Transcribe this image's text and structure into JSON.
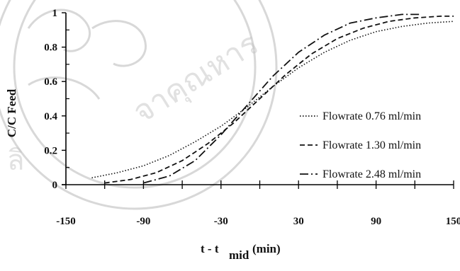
{
  "chart_data": {
    "type": "line",
    "xlabel_main": "t - t",
    "xlabel_sub": "mid",
    "xlabel_unit": "(min)",
    "ylabel": "C/C Feed",
    "xlim": [
      -150,
      150
    ],
    "ylim": [
      0,
      1
    ],
    "x_ticks": [
      "-150",
      "-90",
      "-30",
      "30",
      "90",
      "150"
    ],
    "y_ticks": [
      "0",
      "0.2",
      "0.4",
      "0.6",
      "0.8",
      "1"
    ],
    "grid": false,
    "legend_position": "right",
    "series": [
      {
        "name": "Flowrate 0.76 ml/min",
        "style": "dotted",
        "x": [
          -130,
          -110,
          -90,
          -70,
          -50,
          -30,
          -10,
          10,
          30,
          50,
          70,
          90,
          110,
          130,
          150
        ],
        "y": [
          0.04,
          0.07,
          0.11,
          0.17,
          0.25,
          0.34,
          0.45,
          0.57,
          0.68,
          0.77,
          0.84,
          0.89,
          0.92,
          0.94,
          0.95
        ]
      },
      {
        "name": "Flowrate 1.30 ml/min",
        "style": "dashed",
        "x": [
          -120,
          -100,
          -80,
          -60,
          -40,
          -20,
          0,
          20,
          40,
          60,
          80,
          100,
          120,
          140,
          150
        ],
        "y": [
          0.01,
          0.03,
          0.07,
          0.14,
          0.24,
          0.36,
          0.5,
          0.64,
          0.76,
          0.85,
          0.91,
          0.95,
          0.97,
          0.98,
          0.98
        ]
      },
      {
        "name": "Flowrate 2.48 ml/min",
        "style": "dashdot",
        "x": [
          -90,
          -70,
          -50,
          -30,
          -10,
          10,
          30,
          50,
          70,
          90,
          110,
          125
        ],
        "y": [
          0.01,
          0.05,
          0.14,
          0.29,
          0.46,
          0.63,
          0.77,
          0.87,
          0.94,
          0.97,
          0.99,
          0.99
        ]
      }
    ]
  }
}
